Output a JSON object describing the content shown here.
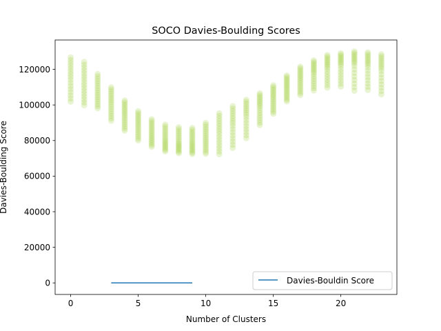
{
  "chart_data": {
    "type": "scatter",
    "title": "SOCO Davies-Boulding Scores",
    "xlabel": "Number of Clusters",
    "ylabel": "Davies-Boulding Score",
    "xlim": [
      -1.15,
      24.15
    ],
    "ylim": [
      -6500,
      136500
    ],
    "xticks": [
      0,
      5,
      10,
      15,
      20
    ],
    "yticks": [
      0,
      20000,
      40000,
      60000,
      80000,
      100000,
      120000
    ],
    "grid": false,
    "legend_position": "lower-right",
    "scatter_color": "#9acd32",
    "line_color": "#1f77b4",
    "series": [
      {
        "type": "scatter",
        "points_per_x": 16,
        "x": [
          0,
          1,
          2,
          3,
          4,
          5,
          6,
          7,
          8,
          9,
          10,
          11,
          12,
          13,
          14,
          15,
          16,
          17,
          18,
          19,
          20,
          21,
          22,
          23
        ],
        "y_min": [
          101000,
          99000,
          97500,
          90500,
          85000,
          79500,
          76000,
          73500,
          72500,
          72000,
          72000,
          71500,
          75000,
          80500,
          88000,
          94500,
          101500,
          105000,
          107500,
          109000,
          109500,
          107000,
          107500,
          105000
        ],
        "y_max": [
          127500,
          125000,
          118000,
          110500,
          103000,
          97000,
          92500,
          89500,
          88000,
          87500,
          90500,
          96000,
          100000,
          103500,
          107000,
          111500,
          117000,
          122000,
          125500,
          128500,
          129500,
          130500,
          130000,
          129000
        ],
        "y_center": [
          115000,
          112000,
          107500,
          101000,
          94500,
          88500,
          84000,
          80500,
          79000,
          79000,
          81000,
          84500,
          89000,
          94000,
          99000,
          103500,
          109500,
          114000,
          118000,
          121000,
          122500,
          123000,
          122000,
          120000
        ]
      },
      {
        "type": "line",
        "name": "Davies-Bouldin Score",
        "x": [
          3,
          9
        ],
        "y": [
          0,
          0
        ]
      }
    ]
  }
}
